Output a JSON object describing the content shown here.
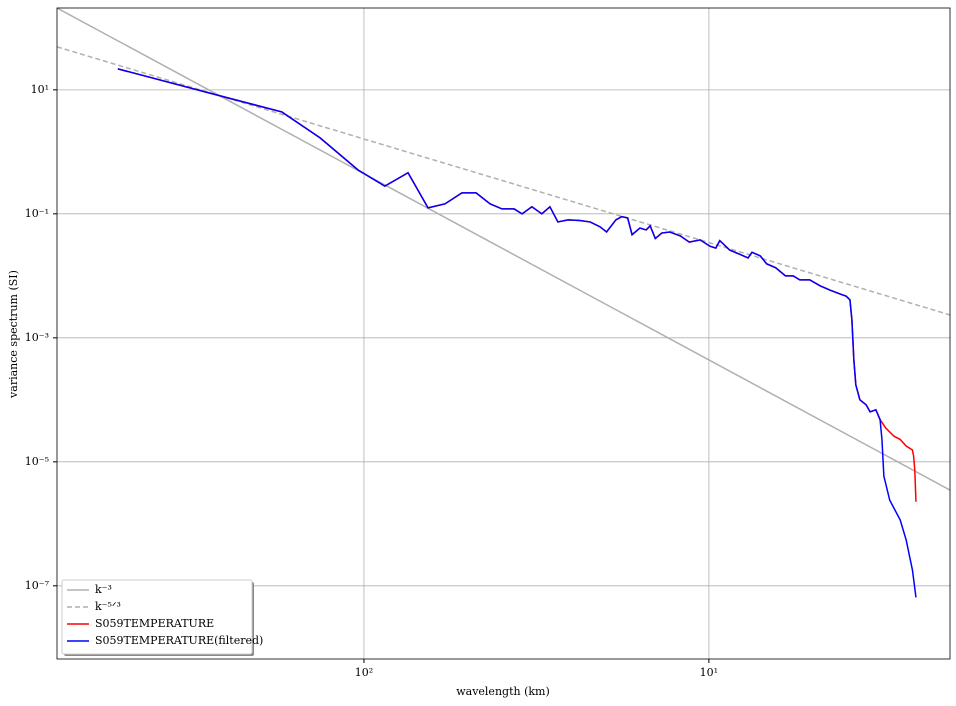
{
  "chart_data": {
    "type": "line",
    "xlabel": "wavelength (km)",
    "ylabel": "variance spectrum (SI)",
    "xscale": "log",
    "yscale": "log",
    "grid": true,
    "legend": "lower left",
    "xlim": [
      776,
      2.0
    ],
    "ylim": [
      209,
      6.6e-09
    ],
    "xticks": [
      {
        "value": 100,
        "label": "10²"
      },
      {
        "value": 10,
        "label": "10¹"
      }
    ],
    "yticks": [
      {
        "value": 10,
        "label": "10¹"
      },
      {
        "value": 0.1,
        "label": "10⁻¹"
      },
      {
        "value": 0.001,
        "label": "10⁻³"
      },
      {
        "value": 1e-05,
        "label": "10⁻⁵"
      },
      {
        "value": 1e-07,
        "label": "10⁻⁷"
      }
    ],
    "series": [
      {
        "name": "k⁻³",
        "color": "#b0b0b0",
        "dashed": false,
        "x": [
          776,
          2.0
        ],
        "values": [
          209,
          3.5e-06
        ]
      },
      {
        "name": "k⁻⁵ᐟ³",
        "color": "#b0b0b0",
        "dashed": true,
        "x": [
          776,
          2.0
        ],
        "values": [
          49.4,
          0.00234
        ]
      },
      {
        "name": "S059TEMPERATURE",
        "color": "#ff0000",
        "dashed": false,
        "x": [
          517,
          261,
          173,
          134,
          104,
          87,
          74.5,
          65.2,
          58.2,
          52,
          47.3,
          43.1,
          39.8,
          36.7,
          34.8,
          32.6,
          30.5,
          28.9,
          27.4,
          25.6,
          23.7,
          22.1,
          20.7,
          19.8,
          18.6,
          17.9,
          17.2,
          16.7,
          15.85,
          15.2,
          14.8,
          14.3,
          13.7,
          13.0,
          12.1,
          11.4,
          10.6,
          9.93,
          9.55,
          9.3,
          8.7,
          8.1,
          7.7,
          7.5,
          7.1,
          6.8,
          6.4,
          6.0,
          5.7,
          5.45,
          5.1,
          4.76,
          4.46,
          4.17,
          4.0,
          3.9,
          3.85,
          3.8,
          3.75,
          3.65,
          3.5,
          3.41,
          3.28,
          3.19,
          3.07,
          2.91,
          2.79,
          2.68,
          2.57,
          2.55,
          2.53,
          2.51
        ],
        "values": [
          21.8,
          8.0,
          4.4,
          1.68,
          0.51,
          0.28,
          0.46,
          0.125,
          0.145,
          0.218,
          0.218,
          0.145,
          0.12,
          0.12,
          0.1,
          0.13,
          0.1,
          0.13,
          0.074,
          0.08,
          0.078,
          0.074,
          0.062,
          0.051,
          0.08,
          0.09,
          0.086,
          0.046,
          0.059,
          0.055,
          0.064,
          0.04,
          0.049,
          0.051,
          0.044,
          0.035,
          0.038,
          0.03,
          0.028,
          0.037,
          0.026,
          0.022,
          0.0194,
          0.024,
          0.021,
          0.0156,
          0.0135,
          0.01,
          0.01,
          0.0086,
          0.0086,
          0.0069,
          0.0059,
          0.0051,
          0.0047,
          0.0041,
          0.00195,
          0.00044,
          0.000174,
          0.0001,
          8.3e-05,
          6.4e-05,
          6.9e-05,
          4.8e-05,
          3.5e-05,
          2.6e-05,
          2.3e-05,
          1.8e-05,
          1.55e-05,
          1.24e-05,
          7.4e-06,
          2.27e-06
        ]
      },
      {
        "name": "S059TEMPERATURE(filtered)",
        "color": "#0000ff",
        "dashed": false,
        "x": [
          517,
          261,
          173,
          134,
          104,
          87,
          74.5,
          65.2,
          58.2,
          52,
          47.3,
          43.1,
          39.8,
          36.7,
          34.8,
          32.6,
          30.5,
          28.9,
          27.4,
          25.6,
          23.7,
          22.1,
          20.7,
          19.8,
          18.6,
          17.9,
          17.2,
          16.7,
          15.85,
          15.2,
          14.8,
          14.3,
          13.7,
          13.0,
          12.1,
          11.4,
          10.6,
          9.93,
          9.55,
          9.3,
          8.7,
          8.1,
          7.7,
          7.5,
          7.1,
          6.8,
          6.4,
          6.0,
          5.7,
          5.45,
          5.1,
          4.76,
          4.46,
          4.17,
          4.0,
          3.9,
          3.85,
          3.8,
          3.75,
          3.65,
          3.5,
          3.41,
          3.28,
          3.19,
          3.15,
          3.11,
          2.99,
          2.79,
          2.68,
          2.57,
          2.51
        ],
        "values": [
          21.8,
          8.0,
          4.4,
          1.68,
          0.51,
          0.28,
          0.46,
          0.125,
          0.145,
          0.218,
          0.218,
          0.145,
          0.12,
          0.12,
          0.1,
          0.13,
          0.1,
          0.13,
          0.074,
          0.08,
          0.078,
          0.074,
          0.062,
          0.051,
          0.08,
          0.09,
          0.086,
          0.046,
          0.059,
          0.055,
          0.064,
          0.04,
          0.049,
          0.051,
          0.044,
          0.035,
          0.038,
          0.03,
          0.028,
          0.037,
          0.026,
          0.022,
          0.0194,
          0.024,
          0.021,
          0.0156,
          0.0135,
          0.01,
          0.01,
          0.0086,
          0.0086,
          0.0069,
          0.0059,
          0.0051,
          0.0047,
          0.0041,
          0.00195,
          0.00044,
          0.000174,
          0.0001,
          8.3e-05,
          6.4e-05,
          6.9e-05,
          4.8e-05,
          2.3e-05,
          5.9e-06,
          2.4e-06,
          1.16e-06,
          5.5e-07,
          1.8e-07,
          6.5e-08
        ]
      }
    ]
  }
}
